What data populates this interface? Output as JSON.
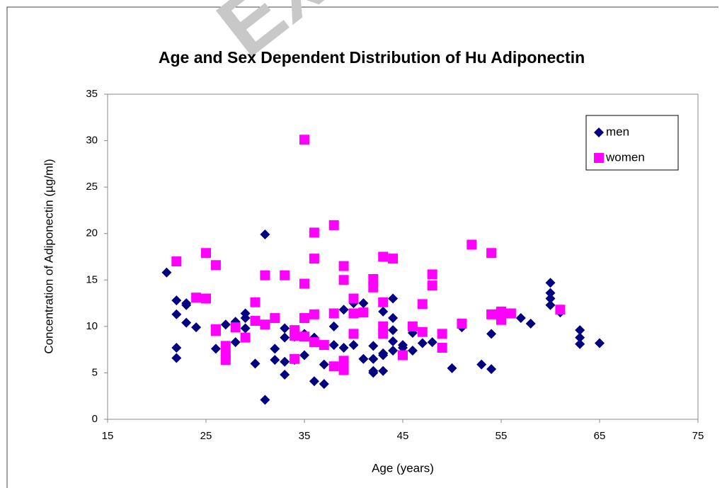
{
  "chart_data": {
    "type": "scatter",
    "title": "Age and Sex Dependent Distribution of Hu Adiponectin",
    "watermark": "Example",
    "x_label": "Age (years)",
    "y_label": "Concentration of Adiponectin (µg/ml)",
    "xlim": [
      15,
      75
    ],
    "xticks": [
      15,
      25,
      35,
      45,
      55,
      65,
      75
    ],
    "ylim": [
      0,
      35
    ],
    "yticks": [
      0,
      5,
      10,
      15,
      20,
      25,
      30,
      35
    ],
    "legend": "top-right",
    "series": [
      {
        "name": "men",
        "color": "#000080",
        "marker": "diamond",
        "x": [
          21,
          22,
          22,
          22,
          22,
          23,
          23,
          23,
          24,
          26,
          27,
          27,
          28,
          28,
          29,
          29,
          29,
          30,
          31,
          31,
          32,
          32,
          33,
          33,
          33,
          33,
          34,
          34,
          34,
          35,
          35,
          36,
          36,
          37,
          37,
          38,
          38,
          39,
          39,
          40,
          40,
          41,
          41,
          42,
          42,
          42,
          42,
          43,
          43,
          43,
          43,
          43,
          44,
          44,
          44,
          44,
          44,
          45,
          45,
          46,
          46,
          47,
          48,
          50,
          51,
          53,
          54,
          54,
          57,
          58,
          60,
          60,
          60,
          60,
          61,
          63,
          63,
          63,
          65
        ],
        "values": [
          15.8,
          12.8,
          11.3,
          7.7,
          6.6,
          12.5,
          12.3,
          10.4,
          9.9,
          7.6,
          10.2,
          7.3,
          10.5,
          8.3,
          11.4,
          10.9,
          9.8,
          6.0,
          19.9,
          2.1,
          7.6,
          6.4,
          9.8,
          8.8,
          6.2,
          4.8,
          9.5,
          8.9,
          6.4,
          9.2,
          6.9,
          8.8,
          4.1,
          5.9,
          3.8,
          10.0,
          8.0,
          11.8,
          7.7,
          12.5,
          8.0,
          12.5,
          6.5,
          7.9,
          6.5,
          5.2,
          5.0,
          11.6,
          9.4,
          7.1,
          6.9,
          5.2,
          13.0,
          10.9,
          9.6,
          8.4,
          7.4,
          8.0,
          7.7,
          9.3,
          7.4,
          8.2,
          8.3,
          5.5,
          9.9,
          5.9,
          9.2,
          5.4,
          10.9,
          10.3,
          14.7,
          13.6,
          13.0,
          12.3,
          11.5,
          9.6,
          8.8,
          8.1,
          8.2
        ]
      },
      {
        "name": "women",
        "color": "#ff00ff",
        "marker": "square",
        "x": [
          22,
          24,
          25,
          25,
          26,
          26,
          26,
          27,
          27,
          27,
          28,
          29,
          30,
          30,
          31,
          31,
          32,
          33,
          34,
          34,
          34,
          35,
          35,
          35,
          35,
          36,
          36,
          36,
          36,
          37,
          38,
          38,
          38,
          39,
          39,
          39,
          39,
          40,
          40,
          40,
          41,
          42,
          42,
          43,
          43,
          43,
          43,
          44,
          45,
          46,
          47,
          47,
          48,
          48,
          49,
          49,
          51,
          52,
          54,
          54,
          55,
          55,
          55,
          56,
          61
        ],
        "values": [
          17.0,
          13.1,
          17.9,
          13.0,
          16.6,
          9.7,
          9.5,
          7.9,
          6.9,
          6.4,
          9.9,
          8.8,
          12.6,
          10.6,
          15.5,
          10.2,
          10.9,
          15.5,
          9.6,
          9.0,
          6.5,
          30.1,
          14.6,
          10.9,
          8.9,
          20.1,
          17.3,
          11.3,
          8.3,
          8.0,
          20.9,
          11.4,
          5.7,
          16.5,
          15.0,
          6.3,
          5.3,
          13.0,
          11.4,
          9.2,
          11.5,
          15.1,
          14.2,
          17.5,
          12.6,
          10.0,
          9.2,
          17.3,
          6.9,
          10.0,
          12.4,
          9.4,
          15.6,
          14.4,
          9.2,
          7.7,
          10.3,
          18.8,
          17.9,
          11.3,
          11.6,
          11.2,
          10.7,
          11.4,
          11.8
        ]
      }
    ]
  }
}
